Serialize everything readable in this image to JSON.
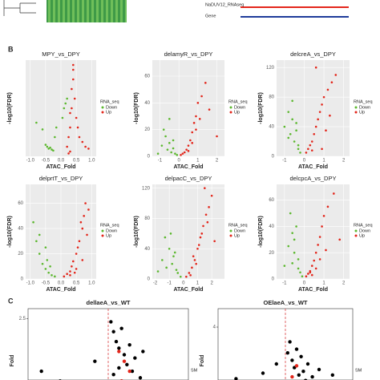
{
  "panel_labels": [
    "B",
    "C"
  ],
  "top_strip": {
    "gene_label": "Gene",
    "track_label": "NaDUV12_RNAseq"
  },
  "chart_data": [
    {
      "type": "scatter",
      "title": "MPY_vs_DPY",
      "x_label": "ATAC_Fold",
      "y_label": "-log10(FDR)",
      "legend_title": "RNA_seq",
      "xlim": [
        -1.15,
        1.15
      ],
      "ylim": [
        0,
        100
      ],
      "xticks": [
        {
          "value": -1,
          "label": "-1.0"
        },
        {
          "value": -0.5,
          "label": "-0.5"
        },
        {
          "value": 0,
          "label": "0.0"
        },
        0.5,
        {
          "value": 1,
          "label": "1.0"
        }
      ],
      "series": [
        {
          "name": "Down",
          "color": "#5cb82f",
          "x": [
            -0.8,
            -0.6,
            -0.5,
            -0.45,
            -0.4,
            -0.35,
            -0.3,
            -0.25,
            -0.2,
            -0.15,
            0.05,
            0.1,
            0.15,
            0.2
          ],
          "values": [
            35,
            28,
            12,
            10,
            8,
            9,
            7,
            6,
            20,
            30,
            40,
            50,
            55,
            60
          ]
        },
        {
          "name": "Up",
          "color": "#e3261b",
          "x": [
            0.2,
            0.25,
            0.3,
            0.3,
            0.35,
            0.35,
            0.4,
            0.4,
            0.45,
            0.5,
            0.55,
            0.6,
            0.7,
            0.8,
            0.9,
            0.3,
            0.25,
            0.4
          ],
          "values": [
            10,
            20,
            30,
            45,
            50,
            70,
            80,
            90,
            60,
            40,
            30,
            20,
            15,
            10,
            8,
            5,
            3,
            95
          ]
        }
      ]
    },
    {
      "type": "scatter",
      "title": "delamyR_vs_DPY",
      "x_label": "ATAC_Fold",
      "y_label": "-log10(FDR)",
      "legend_title": "RNA_seq",
      "xlim": [
        -1.4,
        2.4
      ],
      "ylim": [
        0,
        72
      ],
      "xticks": [
        -1,
        0,
        1,
        2
      ],
      "yticks": [
        0,
        20,
        40,
        60
      ],
      "series": [
        {
          "name": "Down",
          "color": "#5cb82f",
          "x": [
            -1.1,
            -0.9,
            -0.7,
            -0.6,
            -0.5,
            -0.4,
            -0.3,
            -0.2,
            -0.1,
            -0.8,
            -0.5,
            -0.3
          ],
          "values": [
            2,
            8,
            15,
            5,
            10,
            3,
            6,
            2,
            1,
            20,
            28,
            12
          ]
        },
        {
          "name": "Up",
          "color": "#e3261b",
          "x": [
            0.1,
            0.2,
            0.3,
            0.4,
            0.5,
            0.6,
            0.7,
            0.8,
            0.9,
            1.0,
            1.2,
            1.4,
            0.5,
            0.7,
            0.9,
            1.1,
            1.6,
            2.0
          ],
          "values": [
            1,
            2,
            3,
            5,
            8,
            12,
            18,
            25,
            30,
            40,
            45,
            55,
            4,
            10,
            20,
            28,
            35,
            15
          ]
        }
      ]
    },
    {
      "type": "scatter",
      "title": "delcreA_vs_DPY",
      "x_label": "ATAC_Fold",
      "y_label": "-log10(FDR)",
      "legend_title": "RNA_seq",
      "xlim": [
        -1.4,
        2.3
      ],
      "ylim": [
        0,
        130
      ],
      "xticks": [
        -1,
        0,
        1,
        2
      ],
      "yticks": [
        0,
        40,
        80,
        120
      ],
      "series": [
        {
          "name": "Down",
          "color": "#5cb82f",
          "x": [
            -1.0,
            -0.8,
            -0.7,
            -0.6,
            -0.5,
            -0.4,
            -0.3,
            -0.2,
            -0.6,
            -0.4,
            -0.8,
            -0.3
          ],
          "values": [
            40,
            60,
            30,
            50,
            20,
            35,
            15,
            5,
            75,
            45,
            25,
            10
          ]
        },
        {
          "name": "Up",
          "color": "#e3261b",
          "x": [
            0.1,
            0.2,
            0.3,
            0.4,
            0.5,
            0.6,
            0.7,
            0.8,
            0.9,
            1.0,
            1.2,
            1.4,
            1.6,
            0.6,
            0.9,
            1.1,
            1.3,
            0.4
          ],
          "values": [
            5,
            10,
            15,
            20,
            30,
            40,
            50,
            60,
            70,
            80,
            90,
            100,
            110,
            120,
            10,
            35,
            55,
            8
          ]
        }
      ]
    },
    {
      "type": "scatter",
      "title": "delprtT_vs_DPY",
      "x_label": "ATAC_Fold",
      "y_label": "-log10(FDR)",
      "legend_title": "RNA_seq",
      "xlim": [
        -1.15,
        1.15
      ],
      "ylim": [
        0,
        75
      ],
      "xticks": [
        {
          "value": -1,
          "label": "-1.0"
        },
        {
          "value": -0.5,
          "label": "-0.5"
        },
        {
          "value": 0,
          "label": "0.0"
        },
        0.5,
        {
          "value": 1,
          "label": "1.0"
        }
      ],
      "yticks": [
        0,
        20,
        40,
        60
      ],
      "series": [
        {
          "name": "Down",
          "color": "#5cb82f",
          "x": [
            -0.9,
            -0.8,
            -0.7,
            -0.6,
            -0.5,
            -0.45,
            -0.4,
            -0.3,
            -0.2,
            -0.7,
            -0.5,
            -0.35
          ],
          "values": [
            45,
            30,
            20,
            12,
            8,
            15,
            5,
            3,
            2,
            35,
            25,
            10
          ]
        },
        {
          "name": "Up",
          "color": "#e3261b",
          "x": [
            0.1,
            0.2,
            0.3,
            0.35,
            0.4,
            0.5,
            0.55,
            0.6,
            0.7,
            0.75,
            0.8,
            0.9,
            0.3,
            0.5,
            0.7,
            0.85,
            0.45,
            0.65
          ],
          "values": [
            2,
            4,
            6,
            10,
            14,
            20,
            25,
            30,
            40,
            50,
            60,
            55,
            3,
            8,
            15,
            35,
            5,
            45
          ]
        }
      ]
    },
    {
      "type": "scatter",
      "title": "delpacC_vs_DPY",
      "x_label": "ATAC_Fold",
      "y_label": "-log10(FDR)",
      "legend_title": "RNA_seq",
      "xlim": [
        -2.2,
        2.9
      ],
      "ylim": [
        0,
        125
      ],
      "xticks": [
        -2,
        -1,
        0,
        1,
        2
      ],
      "yticks": [
        0,
        40,
        80,
        120
      ],
      "series": [
        {
          "name": "Down",
          "color": "#5cb82f",
          "x": [
            -1.8,
            -1.5,
            -1.2,
            -1.0,
            -0.8,
            -0.6,
            -0.4,
            -0.2,
            -1.3,
            -0.9,
            -0.5,
            -0.7
          ],
          "values": [
            10,
            25,
            15,
            40,
            20,
            35,
            8,
            3,
            55,
            60,
            12,
            30
          ]
        },
        {
          "name": "Up",
          "color": "#e3261b",
          "x": [
            0.2,
            0.4,
            0.6,
            0.8,
            1.0,
            1.2,
            1.4,
            1.6,
            1.8,
            2.0,
            0.5,
            0.9,
            1.3,
            1.5,
            0.7,
            1.1,
            1.7,
            2.2
          ],
          "values": [
            3,
            8,
            15,
            25,
            40,
            55,
            70,
            85,
            95,
            110,
            5,
            20,
            60,
            120,
            30,
            45,
            75,
            50
          ]
        }
      ]
    },
    {
      "type": "scatter",
      "title": "delcpcA_vs_DPY",
      "x_label": "ATAC_Fold",
      "y_label": "-log10(FDR)",
      "legend_title": "RNA_seq",
      "xlim": [
        -1.4,
        2.3
      ],
      "ylim": [
        0,
        72
      ],
      "xticks": [
        -1,
        0,
        1,
        2
      ],
      "yticks": [
        0,
        20,
        40,
        60
      ],
      "series": [
        {
          "name": "Down",
          "color": "#5cb82f",
          "x": [
            -1.0,
            -0.8,
            -0.6,
            -0.5,
            -0.4,
            -0.3,
            -0.2,
            -0.1,
            -0.7,
            -0.5,
            -0.3,
            -0.6
          ],
          "values": [
            10,
            25,
            35,
            20,
            40,
            15,
            5,
            2,
            50,
            30,
            8,
            12
          ]
        },
        {
          "name": "Up",
          "color": "#e3261b",
          "x": [
            0.1,
            0.2,
            0.3,
            0.4,
            0.5,
            0.6,
            0.7,
            0.8,
            0.9,
            1.0,
            1.2,
            1.5,
            0.4,
            0.6,
            0.8,
            1.1,
            1.8,
            0.3
          ],
          "values": [
            2,
            4,
            6,
            10,
            14,
            20,
            26,
            32,
            40,
            48,
            55,
            65,
            3,
            8,
            15,
            22,
            30,
            5
          ]
        }
      ]
    },
    {
      "type": "scatter",
      "title": "dellaeA_vs_WT",
      "y_label": "Fold",
      "annotation": "SM",
      "vline": 0,
      "hline": 0.5,
      "xlim": [
        -3,
        3
      ],
      "ylim": [
        0,
        2.8
      ],
      "yticks": [
        2.5
      ],
      "series": [
        {
          "color": "#000000",
          "x": [
            -2.5,
            -1.8,
            -1.0,
            -0.5,
            0.1,
            0.2,
            0.3,
            0.4,
            0.5,
            0.6,
            0.7,
            0.8,
            0.9,
            1.0,
            1.2,
            1.5,
            0.3,
            0.5,
            0.7,
            0.4,
            0.6,
            0.9,
            1.3,
            0.2
          ],
          "values": [
            0.9,
            0.6,
            0.4,
            1.2,
            2.4,
            2.1,
            1.8,
            1.6,
            2.2,
            1.4,
            1.1,
            1.7,
            0.9,
            1.3,
            0.7,
            0.5,
            0.3,
            0.6,
            0.4,
            1.0,
            0.2,
            0.35,
            1.5,
            0.8
          ]
        },
        {
          "color": "#e3261b",
          "x": [
            0.4,
            0.6,
            0.8,
            0.5
          ],
          "values": [
            1.5,
            1.2,
            0.9,
            0.6
          ]
        }
      ]
    },
    {
      "type": "scatter",
      "title": "OElaeA_vs_WT",
      "y_label": "Fold",
      "annotation": "SM",
      "vline": 0,
      "hline": 1,
      "xlim": [
        -3,
        3
      ],
      "ylim": [
        0,
        5
      ],
      "yticks": [
        4
      ],
      "series": [
        {
          "color": "#000000",
          "x": [
            -2.2,
            -1.5,
            -1.0,
            -0.4,
            0.1,
            0.2,
            0.3,
            0.4,
            0.5,
            0.6,
            0.7,
            0.8,
            0.9,
            1.0,
            1.2,
            1.5,
            1.8,
            2.1,
            0.3,
            0.5,
            0.7,
            0.4,
            0.6,
            1.1
          ],
          "values": [
            1.2,
            0.8,
            1.5,
            2.0,
            2.6,
            3.2,
            2.2,
            1.8,
            2.8,
            1.4,
            2.4,
            1.6,
            1.1,
            2.0,
            1.3,
            1.7,
            0.9,
            1.4,
            0.5,
            0.7,
            0.6,
            1.0,
            0.4,
            0.8
          ]
        },
        {
          "color": "#e3261b",
          "x": [
            0.3,
            0.5,
            0.7
          ],
          "values": [
            1.3,
            1.9,
            0.9
          ]
        }
      ]
    }
  ]
}
